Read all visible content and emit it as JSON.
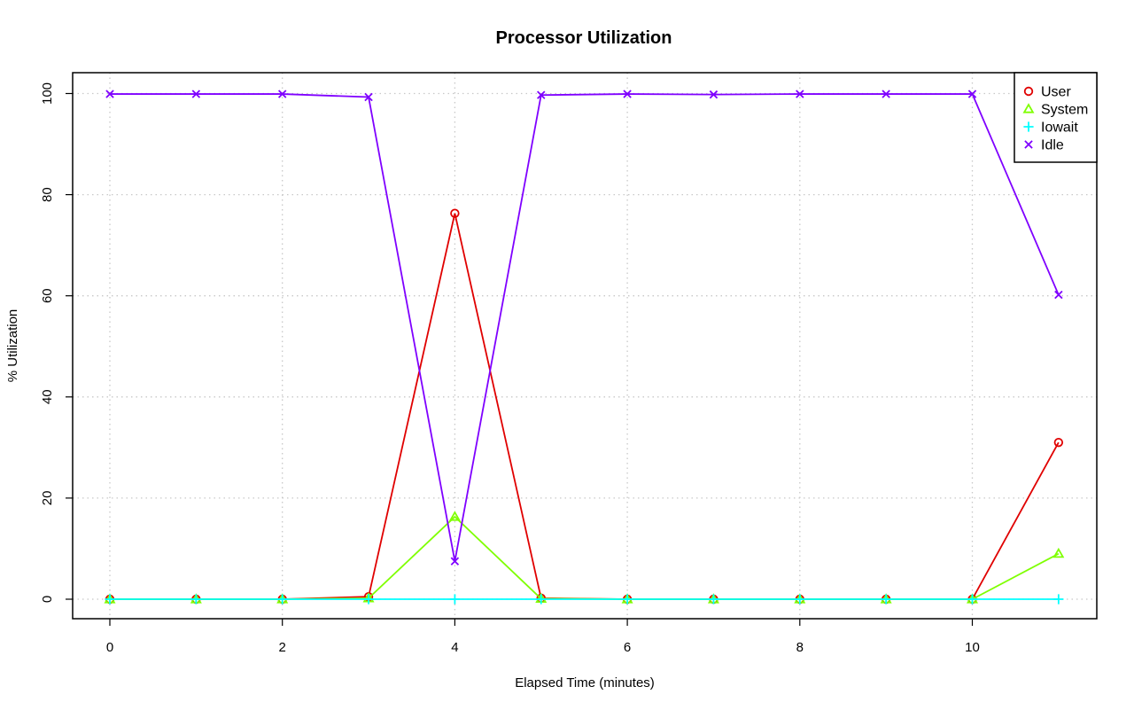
{
  "chart_data": {
    "type": "line",
    "title": "Processor Utilization",
    "xlabel": "Elapsed Time (minutes)",
    "ylabel": "% Utilization",
    "xlim": [
      0,
      11
    ],
    "ylim": [
      0,
      100
    ],
    "x_ticks": [
      0,
      2,
      4,
      6,
      8,
      10
    ],
    "y_ticks": [
      0,
      20,
      40,
      60,
      80,
      100
    ],
    "grid": true,
    "legend_position": "top-right",
    "x": [
      0,
      1,
      2,
      3,
      4,
      5,
      6,
      7,
      8,
      9,
      10,
      11
    ],
    "series": [
      {
        "name": "User",
        "color": "#e00000",
        "marker": "circle",
        "values": [
          0,
          0,
          0,
          0.5,
          76.3,
          0.2,
          0,
          0,
          0,
          0,
          0,
          31
        ]
      },
      {
        "name": "System",
        "color": "#7fff00",
        "marker": "triangle",
        "values": [
          0,
          0,
          0,
          0.2,
          16.3,
          0.1,
          0,
          0,
          0,
          0,
          0,
          9
        ]
      },
      {
        "name": "Iowait",
        "color": "#00ffff",
        "marker": "plus",
        "values": [
          0,
          0,
          0,
          0,
          0,
          0,
          0,
          0,
          0,
          0,
          0,
          0
        ]
      },
      {
        "name": "Idle",
        "color": "#7f00ff",
        "marker": "cross",
        "values": [
          99.9,
          99.9,
          99.9,
          99.3,
          7.5,
          99.7,
          99.9,
          99.8,
          99.9,
          99.9,
          99.9,
          60.2
        ]
      }
    ]
  }
}
